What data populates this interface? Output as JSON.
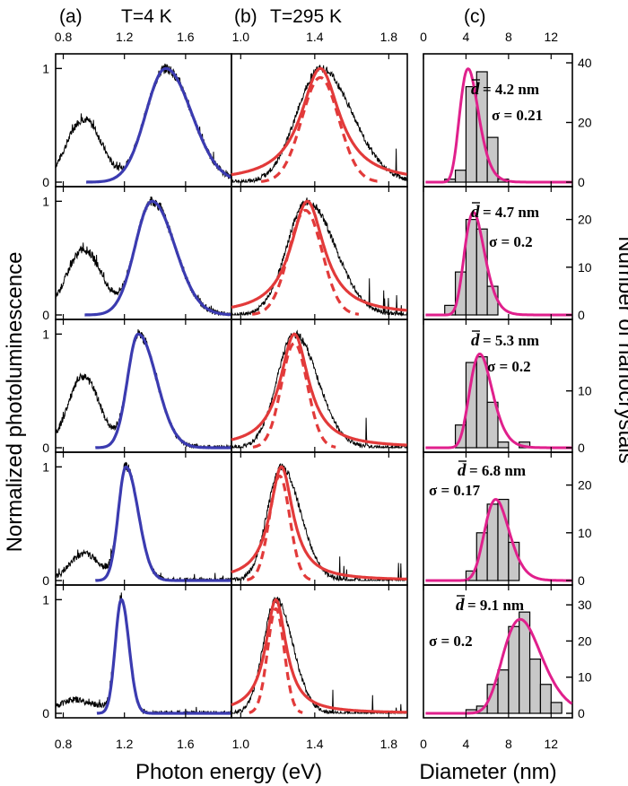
{
  "figure": {
    "panel_labels": {
      "a": "(a)",
      "b": "(b)",
      "c": "(c)"
    },
    "panel_titles": {
      "a": "T=4 K",
      "b": "T=295 K"
    },
    "xlabel_energy": "Photon energy (eV)",
    "xlabel_diameter": "Diameter (nm)",
    "ylabel_left": "Normalized photoluminescence",
    "ylabel_right": "Number of nanocrystals"
  },
  "chart_data": [
    {
      "panel": "a",
      "type": "line",
      "title": "T=4 K",
      "xlabel": "Photon energy (eV)",
      "ylabel": "Normalized photoluminescence",
      "xlim": [
        0.75,
        1.9
      ],
      "ylim": [
        0,
        1.05
      ],
      "xticks": [
        0.8,
        1.2,
        1.6
      ],
      "yticks": [
        0,
        1
      ],
      "colors": {
        "data": "#000000",
        "fit": "#3b3bb0"
      },
      "rows": [
        {
          "low_peak": {
            "x0": 0.93,
            "w": 0.11,
            "h": 0.55
          },
          "main_peak": {
            "x0": 1.47,
            "left_w": 0.13,
            "right_w": 0.17
          }
        },
        {
          "low_peak": {
            "x0": 0.93,
            "w": 0.11,
            "h": 0.57
          },
          "main_peak": {
            "x0": 1.38,
            "left_w": 0.11,
            "right_w": 0.15
          }
        },
        {
          "low_peak": {
            "x0": 0.93,
            "w": 0.1,
            "h": 0.62
          },
          "main_peak": {
            "x0": 1.29,
            "left_w": 0.07,
            "right_w": 0.12
          }
        },
        {
          "low_peak": {
            "x0": 0.93,
            "w": 0.09,
            "h": 0.23
          },
          "main_peak": {
            "x0": 1.21,
            "left_w": 0.05,
            "right_w": 0.08
          }
        },
        {
          "low_peak": {
            "x0": 0.87,
            "w": 0.1,
            "h": 0.12
          },
          "main_peak": {
            "x0": 1.18,
            "left_w": 0.04,
            "right_w": 0.05
          }
        }
      ]
    },
    {
      "panel": "b",
      "type": "line",
      "title": "T=295 K",
      "xlabel": "Photon energy (eV)",
      "ylim": [
        0,
        1.05
      ],
      "xlim": [
        0.95,
        1.9
      ],
      "xticks": [
        1.0,
        1.4,
        1.8
      ],
      "colors": {
        "data": "#000000",
        "fit": "#e23a3a",
        "component": "#e23a3a"
      },
      "rows": [
        {
          "peak": 1.43,
          "width": 0.15,
          "component_peak": 1.43,
          "component_width": 0.1
        },
        {
          "peak": 1.36,
          "width": 0.13,
          "component_peak": 1.35,
          "component_width": 0.09
        },
        {
          "peak": 1.29,
          "width": 0.11,
          "component_peak": 1.29,
          "component_width": 0.07
        },
        {
          "peak": 1.22,
          "width": 0.09,
          "component_peak": 1.21,
          "component_width": 0.055
        },
        {
          "peak": 1.19,
          "width": 0.08,
          "component_peak": 1.19,
          "component_width": 0.045
        }
      ]
    },
    {
      "panel": "c",
      "type": "bar",
      "xlabel": "Diameter (nm)",
      "ylabel": "Number of nanocrystals",
      "xlim": [
        0,
        14
      ],
      "xticks": [
        0,
        4,
        8,
        12
      ],
      "colors": {
        "bars": "#c8c8c8",
        "fit": "#e0208c"
      },
      "rows": [
        {
          "mean_label": "= 4.2 nm",
          "sigma_label": "σ = 0.21",
          "ylim": [
            0,
            40
          ],
          "yticks": [
            0,
            20,
            40
          ],
          "bin_edges": [
            2,
            3,
            4,
            5,
            6,
            7,
            8
          ],
          "counts": [
            1,
            4,
            32,
            37,
            15,
            1
          ],
          "fit": {
            "x0": 4.2,
            "amp": 38,
            "sigma": 0.21
          }
        },
        {
          "mean_label": "= 4.7 nm",
          "sigma_label": "σ = 0.2",
          "ylim": [
            0,
            25
          ],
          "yticks": [
            0,
            10,
            20
          ],
          "bin_edges": [
            2,
            3,
            4,
            5,
            6,
            7
          ],
          "counts": [
            2,
            9,
            20,
            18,
            6
          ],
          "fit": {
            "x0": 4.7,
            "amp": 21.5,
            "sigma": 0.2
          }
        },
        {
          "mean_label": "= 5.3 nm",
          "sigma_label": "σ = 0.2",
          "ylim": [
            0,
            21
          ],
          "yticks": [
            0,
            10
          ],
          "bin_edges": [
            3,
            4,
            5,
            6,
            7,
            8,
            9,
            10
          ],
          "counts": [
            4,
            15,
            16,
            8,
            1,
            0,
            1
          ],
          "fit": {
            "x0": 5.3,
            "amp": 16.5,
            "sigma": 0.2
          }
        },
        {
          "mean_label": "= 6.8 nm",
          "sigma_label": "σ = 0.17",
          "ylim": [
            0,
            25
          ],
          "yticks": [
            0,
            10,
            20
          ],
          "bin_edges": [
            4,
            5,
            6,
            7,
            8,
            9
          ],
          "counts": [
            2,
            10,
            16,
            17,
            8
          ],
          "fit": {
            "x0": 6.8,
            "amp": 17,
            "sigma": 0.17
          }
        },
        {
          "mean_label": "= 9.1 nm",
          "sigma_label": "σ = 0.2",
          "ylim": [
            0,
            33
          ],
          "yticks": [
            0,
            10,
            20,
            30
          ],
          "bin_edges": [
            4,
            5,
            6,
            7,
            8,
            9,
            10,
            11,
            12,
            13
          ],
          "counts": [
            1,
            2,
            8,
            12,
            24,
            28,
            15,
            8,
            3
          ],
          "fit": {
            "x0": 9.1,
            "amp": 26,
            "sigma": 0.2
          }
        }
      ]
    }
  ]
}
